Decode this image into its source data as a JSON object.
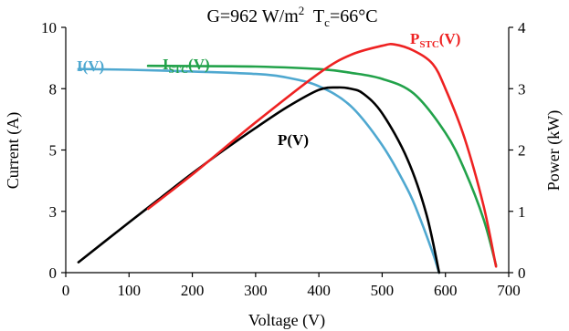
{
  "chart_data": {
    "type": "line",
    "title": {
      "prefix": "G=962 W/m",
      "sup": "2",
      "mid": "  T",
      "sub": "c",
      "suffix": "=66°C"
    },
    "xlabel": "Voltage (V)",
    "ylabel_left": "Current (A)",
    "ylabel_right": "Power (kW)",
    "xlim": [
      0,
      700
    ],
    "ylim_left": [
      0,
      10
    ],
    "ylim_right": [
      0,
      4
    ],
    "x_ticks": [
      "0",
      "100",
      "200",
      "300",
      "400",
      "500",
      "600",
      "700"
    ],
    "y_left_ticks": [
      "0",
      "3",
      "5",
      "8",
      "10"
    ],
    "y_right_ticks": [
      "0",
      "1",
      "2",
      "3",
      "4"
    ],
    "grid": false,
    "series": [
      {
        "name": "I(V)",
        "axis": "left",
        "color": "#4fa8d0",
        "x": [
          20,
          100,
          200,
          300,
          350,
          400,
          450,
          500,
          540,
          560,
          580,
          590
        ],
        "y": [
          8.3,
          8.27,
          8.2,
          8.1,
          7.95,
          7.6,
          6.8,
          5.2,
          3.4,
          2.2,
          0.8,
          0.0
        ]
      },
      {
        "name": "I",
        "name_sub": "STC",
        "name_suffix": "(V)",
        "axis": "left",
        "color": "#22a24a",
        "x": [
          130,
          200,
          300,
          400,
          450,
          500,
          550,
          600,
          630,
          660,
          680
        ],
        "y": [
          8.43,
          8.42,
          8.4,
          8.3,
          8.15,
          7.9,
          7.3,
          5.7,
          4.2,
          2.2,
          0.3
        ]
      },
      {
        "name": "P(V)",
        "axis": "right",
        "color": "#000000",
        "x": [
          20,
          100,
          150,
          200,
          250,
          300,
          350,
          400,
          430,
          450,
          470,
          500,
          540,
          570,
          590
        ],
        "y": [
          0.17,
          0.82,
          1.22,
          1.62,
          2.0,
          2.36,
          2.7,
          2.98,
          3.02,
          3.0,
          2.92,
          2.6,
          1.85,
          0.95,
          0.0
        ]
      },
      {
        "name": "P",
        "name_sub": "STC",
        "name_suffix": "(V)",
        "axis": "right",
        "color": "#ee2222",
        "x": [
          130,
          200,
          300,
          400,
          450,
          500,
          520,
          550,
          580,
          600,
          630,
          660,
          680
        ],
        "y": [
          1.04,
          1.6,
          2.45,
          3.25,
          3.55,
          3.7,
          3.72,
          3.62,
          3.4,
          3.0,
          2.2,
          1.1,
          0.1
        ]
      }
    ]
  }
}
